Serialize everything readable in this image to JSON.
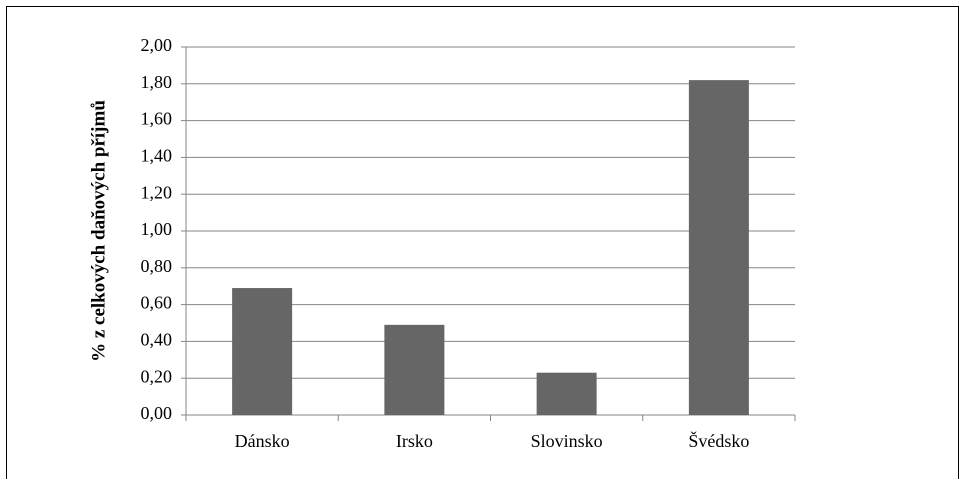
{
  "chart_data": {
    "type": "bar",
    "y_label": "% z celkových daňových příjmů",
    "categories": [
      "Dánsko",
      "Irsko",
      "Slovinsko",
      "Švédsko"
    ],
    "values": [
      0.69,
      0.49,
      0.23,
      1.82
    ],
    "color": "#666666",
    "ylim": [
      0,
      2
    ],
    "yticks": [
      {
        "value": 0,
        "label": "0,00"
      },
      {
        "value": 0.2,
        "label": "0,20"
      },
      {
        "value": 0.4,
        "label": "0,40"
      },
      {
        "value": 0.6,
        "label": "0,60"
      },
      {
        "value": 0.8,
        "label": "0,80"
      },
      {
        "value": 1,
        "label": "1,00"
      },
      {
        "value": 1.2,
        "label": "1,20"
      },
      {
        "value": 1.4,
        "label": "1,40"
      },
      {
        "value": 1.6,
        "label": "1,60"
      },
      {
        "value": 1.8,
        "label": "1,80"
      },
      {
        "value": 2,
        "label": "2,00"
      }
    ],
    "grid": true
  }
}
